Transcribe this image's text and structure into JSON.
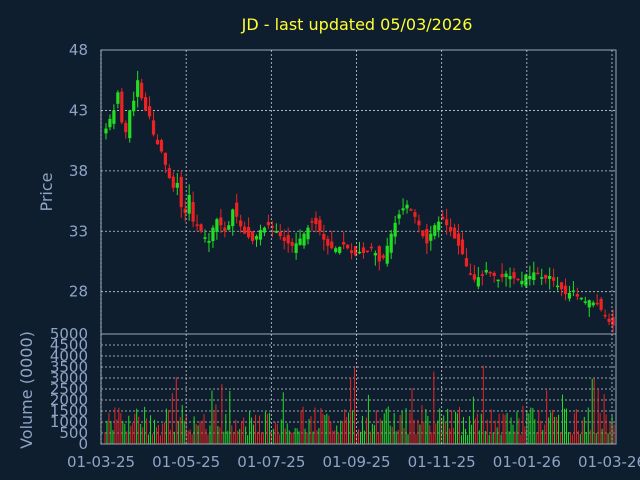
{
  "chart_data": {
    "type": "candlestick",
    "title": "JD - last updated 05/03/2026",
    "price_panel": {
      "ylabel": "Price",
      "yticks": [
        28,
        33,
        38,
        43,
        48
      ],
      "ylim": [
        24.5,
        48
      ]
    },
    "volume_panel": {
      "ylabel": "Volume (0000)",
      "yticks": [
        0,
        500,
        1000,
        1500,
        2000,
        2500,
        3000,
        3500,
        4000,
        4500,
        5000
      ],
      "ylim": [
        0,
        5000
      ]
    },
    "x_ticks": [
      "01-03-25",
      "01-05-25",
      "01-07-25",
      "01-09-25",
      "01-11-25",
      "01-01-26",
      "01-03-26"
    ],
    "grid": true,
    "colors": {
      "up": "#22dd22",
      "down": "#ee2222",
      "background": "#0f1e2e",
      "title": "#ffff33",
      "text": "#8fa4c6"
    },
    "closes": [
      41.5,
      42.3,
      43.0,
      44.5,
      42.0,
      41.2,
      43.0,
      43.8,
      45.5,
      44.0,
      43.0,
      42.5,
      41.0,
      40.2,
      39.6,
      38.5,
      37.4,
      36.6,
      37.0,
      35.0,
      34.5,
      36.0,
      33.8,
      33.5,
      33.0,
      32.5,
      32.2,
      33.3,
      34.0,
      33.5,
      33.0,
      33.5,
      34.8,
      34.2,
      33.4,
      32.8,
      32.5,
      32.2,
      32.6,
      33.1,
      33.3,
      33.5,
      33.3,
      33.0,
      32.6,
      32.2,
      32.0,
      31.8,
      32.0,
      32.4,
      32.8,
      33.3,
      33.8,
      33.6,
      33.0,
      32.3,
      31.8,
      31.6,
      31.6,
      31.7,
      31.9,
      31.6,
      31.2,
      31.0,
      31.3,
      31.2,
      31.4,
      31.6,
      31.2,
      30.5,
      30.8,
      31.8,
      32.8,
      33.7,
      34.4,
      34.9,
      35.2,
      34.8,
      34.2,
      33.5,
      32.6,
      32.0,
      32.8,
      33.5,
      33.8,
      34.0,
      33.5,
      33.0,
      32.4,
      31.8,
      31.1,
      30.1,
      29.4,
      29.0,
      29.2,
      29.3,
      29.8,
      29.6,
      29.3,
      29.0,
      29.2,
      29.5,
      29.3,
      29.1,
      29.0,
      28.9,
      29.4,
      29.3,
      29.6,
      29.5,
      29.2,
      29.1,
      29.3,
      28.9,
      28.5,
      28.2,
      27.8,
      27.9,
      28.1,
      27.6,
      27.5,
      27.2,
      27.3,
      27.1,
      27.0,
      26.5,
      26.0,
      25.5,
      25.2
    ]
  }
}
